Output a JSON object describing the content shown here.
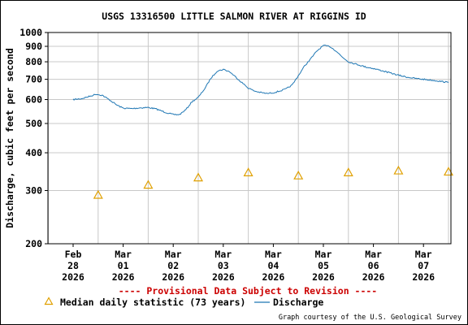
{
  "chart_data": {
    "type": "line",
    "title": "USGS 13316500 LITTLE SALMON RIVER AT RIGGINS ID",
    "ylabel": "Discharge, cubic feet per second",
    "xlabel": "",
    "y_scale": "log",
    "ylim": [
      200,
      1000
    ],
    "y_ticks": [
      200,
      300,
      400,
      500,
      600,
      700,
      800,
      900,
      1000
    ],
    "x_range": [
      "2026-02-28T00:00",
      "2026-03-07T12:00"
    ],
    "x_ticks": [
      {
        "date": "2026-02-28",
        "lines": [
          "Feb",
          "28",
          "2026"
        ]
      },
      {
        "date": "2026-03-01",
        "lines": [
          "Mar",
          "01",
          "2026"
        ]
      },
      {
        "date": "2026-03-02",
        "lines": [
          "Mar",
          "02",
          "2026"
        ]
      },
      {
        "date": "2026-03-03",
        "lines": [
          "Mar",
          "03",
          "2026"
        ]
      },
      {
        "date": "2026-03-04",
        "lines": [
          "Mar",
          "04",
          "2026"
        ]
      },
      {
        "date": "2026-03-05",
        "lines": [
          "Mar",
          "05",
          "2026"
        ]
      },
      {
        "date": "2026-03-06",
        "lines": [
          "Mar",
          "06",
          "2026"
        ]
      },
      {
        "date": "2026-03-07",
        "lines": [
          "Mar",
          "07",
          "2026"
        ]
      }
    ],
    "grid": true,
    "series": [
      {
        "name": "Discharge",
        "color": "#1f77b4",
        "points": [
          [
            "2026-02-28T00:00",
            600
          ],
          [
            "2026-02-28T04:00",
            604
          ],
          [
            "2026-02-28T08:00",
            615
          ],
          [
            "2026-02-28T11:00",
            625
          ],
          [
            "2026-02-28T14:00",
            620
          ],
          [
            "2026-02-28T18:00",
            595
          ],
          [
            "2026-02-28T21:00",
            575
          ],
          [
            "2026-03-01T00:00",
            562
          ],
          [
            "2026-03-01T04:00",
            560
          ],
          [
            "2026-03-01T08:00",
            563
          ],
          [
            "2026-03-01T12:00",
            565
          ],
          [
            "2026-03-01T16:00",
            558
          ],
          [
            "2026-03-01T20:00",
            545
          ],
          [
            "2026-03-02T00:00",
            535
          ],
          [
            "2026-03-02T03:00",
            535
          ],
          [
            "2026-03-02T06:00",
            555
          ],
          [
            "2026-03-02T09:00",
            590
          ],
          [
            "2026-03-02T12:00",
            610
          ],
          [
            "2026-03-02T15:00",
            650
          ],
          [
            "2026-03-02T18:00",
            705
          ],
          [
            "2026-03-02T21:00",
            745
          ],
          [
            "2026-03-03T00:00",
            755
          ],
          [
            "2026-03-03T03:00",
            742
          ],
          [
            "2026-03-03T06:00",
            712
          ],
          [
            "2026-03-03T09:00",
            682
          ],
          [
            "2026-03-03T12:00",
            655
          ],
          [
            "2026-03-03T15:00",
            640
          ],
          [
            "2026-03-03T18:00",
            633
          ],
          [
            "2026-03-03T21:00",
            628
          ],
          [
            "2026-03-04T00:00",
            632
          ],
          [
            "2026-03-04T03:00",
            640
          ],
          [
            "2026-03-04T06:00",
            650
          ],
          [
            "2026-03-04T09:00",
            670
          ],
          [
            "2026-03-04T12:00",
            720
          ],
          [
            "2026-03-04T15:00",
            775
          ],
          [
            "2026-03-04T18:00",
            820
          ],
          [
            "2026-03-04T21:00",
            870
          ],
          [
            "2026-03-05T00:00",
            905
          ],
          [
            "2026-03-05T03:00",
            900
          ],
          [
            "2026-03-05T06:00",
            870
          ],
          [
            "2026-03-05T09:00",
            830
          ],
          [
            "2026-03-05T12:00",
            800
          ],
          [
            "2026-03-05T16:00",
            785
          ],
          [
            "2026-03-05T20:00",
            770
          ],
          [
            "2026-03-06T00:00",
            760
          ],
          [
            "2026-03-06T04:00",
            748
          ],
          [
            "2026-03-06T08:00",
            735
          ],
          [
            "2026-03-06T12:00",
            722
          ],
          [
            "2026-03-06T16:00",
            712
          ],
          [
            "2026-03-06T20:00",
            705
          ],
          [
            "2026-03-07T00:00",
            700
          ],
          [
            "2026-03-07T06:00",
            693
          ],
          [
            "2026-03-07T12:00",
            683
          ]
        ]
      },
      {
        "name": "Median daily statistic (73 years)",
        "color": "#e0a000",
        "marker": "triangle",
        "points": [
          [
            "2026-02-28T12:00",
            290
          ],
          [
            "2026-03-01T12:00",
            313
          ],
          [
            "2026-03-02T12:00",
            331
          ],
          [
            "2026-03-03T12:00",
            344
          ],
          [
            "2026-03-04T12:00",
            336
          ],
          [
            "2026-03-05T12:00",
            344
          ],
          [
            "2026-03-06T12:00",
            349
          ],
          [
            "2026-03-07T12:00",
            346
          ]
        ]
      }
    ],
    "legend": {
      "placement": "bottom",
      "entries": [
        "Median daily statistic (73 years)",
        "Discharge"
      ]
    },
    "annotation": "---- Provisional Data Subject to Revision ----",
    "credit": "Graph courtesy of the U.S. Geological Survey"
  },
  "colors": {
    "discharge": "#1f77b4",
    "median": "#e0a000",
    "provisional": "#cc0000",
    "grid": "#c8c8c8"
  }
}
